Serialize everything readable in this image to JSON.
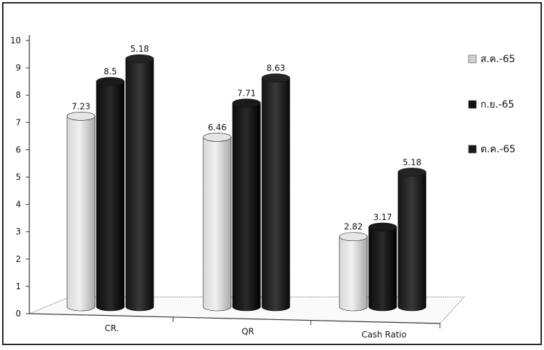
{
  "chart_data": {
    "type": "bar",
    "categories": [
      "CR.",
      "QR",
      "Cash Ratio"
    ],
    "series": [
      {
        "name": "ส.ค.-65",
        "values": [
          7.23,
          6.46,
          2.82
        ]
      },
      {
        "name": "ก.ย.-65",
        "values": [
          8.5,
          7.71,
          3.17
        ]
      },
      {
        "name": "ต.ค.-65",
        "values": [
          9.33,
          8.63,
          5.18
        ]
      }
    ],
    "ylim": [
      0,
      10
    ],
    "yticks": [
      "0",
      "1",
      "2",
      "3",
      "4",
      "5",
      "6",
      "7",
      "8",
      "9",
      "10"
    ],
    "value_labels": [
      [
        "7.23",
        "6.46",
        "2.82"
      ],
      [
        "8.5",
        "7.71",
        "3.17"
      ],
      [
        "5.18"
      ]
    ],
    "legend_position": "right",
    "colors": [
      "#c4c4c4",
      "#111111",
      "#1a1a1a"
    ],
    "style": "3d-cylinder"
  }
}
